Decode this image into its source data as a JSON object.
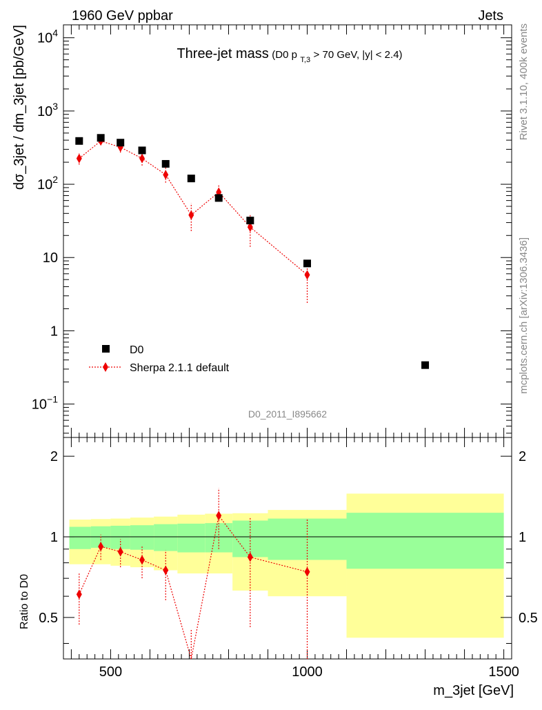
{
  "header": {
    "energy": "1960 GeV ppbar",
    "process": "Jets"
  },
  "side_labels": {
    "rivet": "Rivet 3.1.10,  400k events",
    "mcplots": "mcplots.cern.ch [arXiv:1306.3436]"
  },
  "watermark": "D0_2011_I895662",
  "colors": {
    "data": "#000000",
    "mc": "#ee0000",
    "band_inner": "#99ff99",
    "band_outer": "#ffff99"
  },
  "chart_data": [
    {
      "type": "scatter",
      "panel": "main",
      "title": "Three-jet mass",
      "title_condition": {
        "prefix": "(D0 p",
        "subscript": "T,3",
        "suffix": " > 70 GeV, |y| < 2.4)"
      },
      "xlabel": "m_3jet [GeV]",
      "ylabel": "dσ_3jet / dm_3jet [pb/GeV]",
      "xlim": [
        380,
        1520
      ],
      "ylim": [
        0.035,
        15000
      ],
      "y_scale": "log",
      "y_ticks": [
        {
          "value": 10000,
          "base": "10",
          "exp": "4"
        },
        {
          "value": 1000,
          "base": "10",
          "exp": "3"
        },
        {
          "value": 100,
          "base": "10",
          "exp": "2"
        },
        {
          "value": 10,
          "base": "10",
          "exp": ""
        },
        {
          "value": 1,
          "base": "1",
          "exp": ""
        },
        {
          "value": 0.1,
          "base": "10",
          "exp": "−1"
        }
      ],
      "legend_position": "bottom-left",
      "series": [
        {
          "name": "D0",
          "marker": "square",
          "x": [
            420,
            475,
            525,
            580,
            640,
            705,
            775,
            855,
            1000,
            1300
          ],
          "y": [
            390,
            430,
            370,
            290,
            190,
            120,
            65,
            32,
            8.3,
            0.34
          ]
        },
        {
          "name": "Sherpa 2.1.1 default",
          "marker": "diamond",
          "line": "dotted",
          "x": [
            420,
            475,
            525,
            580,
            640,
            705,
            775,
            855,
            1000
          ],
          "y": [
            225,
            390,
            320,
            225,
            135,
            38,
            78,
            26,
            5.8
          ],
          "y_low": [
            185,
            345,
            270,
            180,
            105,
            23,
            60,
            14,
            2.4
          ],
          "y_high": [
            265,
            440,
            370,
            270,
            170,
            55,
            97,
            38,
            9.5
          ]
        }
      ]
    },
    {
      "type": "scatter",
      "panel": "ratio",
      "xlabel": "m_3jet [GeV]",
      "ylabel": "Ratio to D0",
      "xlim": [
        380,
        1520
      ],
      "ylim": [
        0.35,
        2.35
      ],
      "x_ticks": [
        500,
        1000,
        1500
      ],
      "y_ticks": [
        0.5,
        1,
        2
      ],
      "reference_line": 1,
      "bands": [
        {
          "x0": 395,
          "x1": 450,
          "inner": [
            0.9,
            1.09
          ],
          "outer": [
            0.79,
            1.16
          ]
        },
        {
          "x0": 450,
          "x1": 500,
          "inner": [
            0.91,
            1.095
          ],
          "outer": [
            0.79,
            1.165
          ]
        },
        {
          "x0": 500,
          "x1": 550,
          "inner": [
            0.9,
            1.1
          ],
          "outer": [
            0.78,
            1.17
          ]
        },
        {
          "x0": 550,
          "x1": 610,
          "inner": [
            0.895,
            1.105
          ],
          "outer": [
            0.77,
            1.18
          ]
        },
        {
          "x0": 610,
          "x1": 670,
          "inner": [
            0.885,
            1.115
          ],
          "outer": [
            0.75,
            1.19
          ]
        },
        {
          "x0": 670,
          "x1": 740,
          "inner": [
            0.875,
            1.12
          ],
          "outer": [
            0.73,
            1.21
          ]
        },
        {
          "x0": 740,
          "x1": 810,
          "inner": [
            0.875,
            1.125
          ],
          "outer": [
            0.73,
            1.22
          ]
        },
        {
          "x0": 810,
          "x1": 900,
          "inner": [
            0.84,
            1.15
          ],
          "outer": [
            0.63,
            1.225
          ]
        },
        {
          "x0": 900,
          "x1": 1100,
          "inner": [
            0.82,
            1.17
          ],
          "outer": [
            0.6,
            1.26
          ]
        },
        {
          "x0": 1100,
          "x1": 1500,
          "inner": [
            0.76,
            1.23
          ],
          "outer": [
            0.42,
            1.45
          ]
        }
      ],
      "series": [
        {
          "name": "Sherpa 2.1.1 default",
          "marker": "diamond",
          "line": "dotted",
          "x": [
            420,
            475,
            525,
            580,
            640,
            705,
            775,
            855,
            1000
          ],
          "y": [
            0.61,
            0.92,
            0.88,
            0.82,
            0.75,
            0.32,
            1.2,
            0.84,
            0.74
          ],
          "y_low": [
            0.47,
            0.82,
            0.77,
            0.7,
            0.58,
            0.2,
            0.9,
            0.46,
            0.3
          ],
          "y_high": [
            0.73,
            1.02,
            0.98,
            0.93,
            0.89,
            0.45,
            1.52,
            1.18,
            1.17
          ]
        }
      ]
    }
  ]
}
